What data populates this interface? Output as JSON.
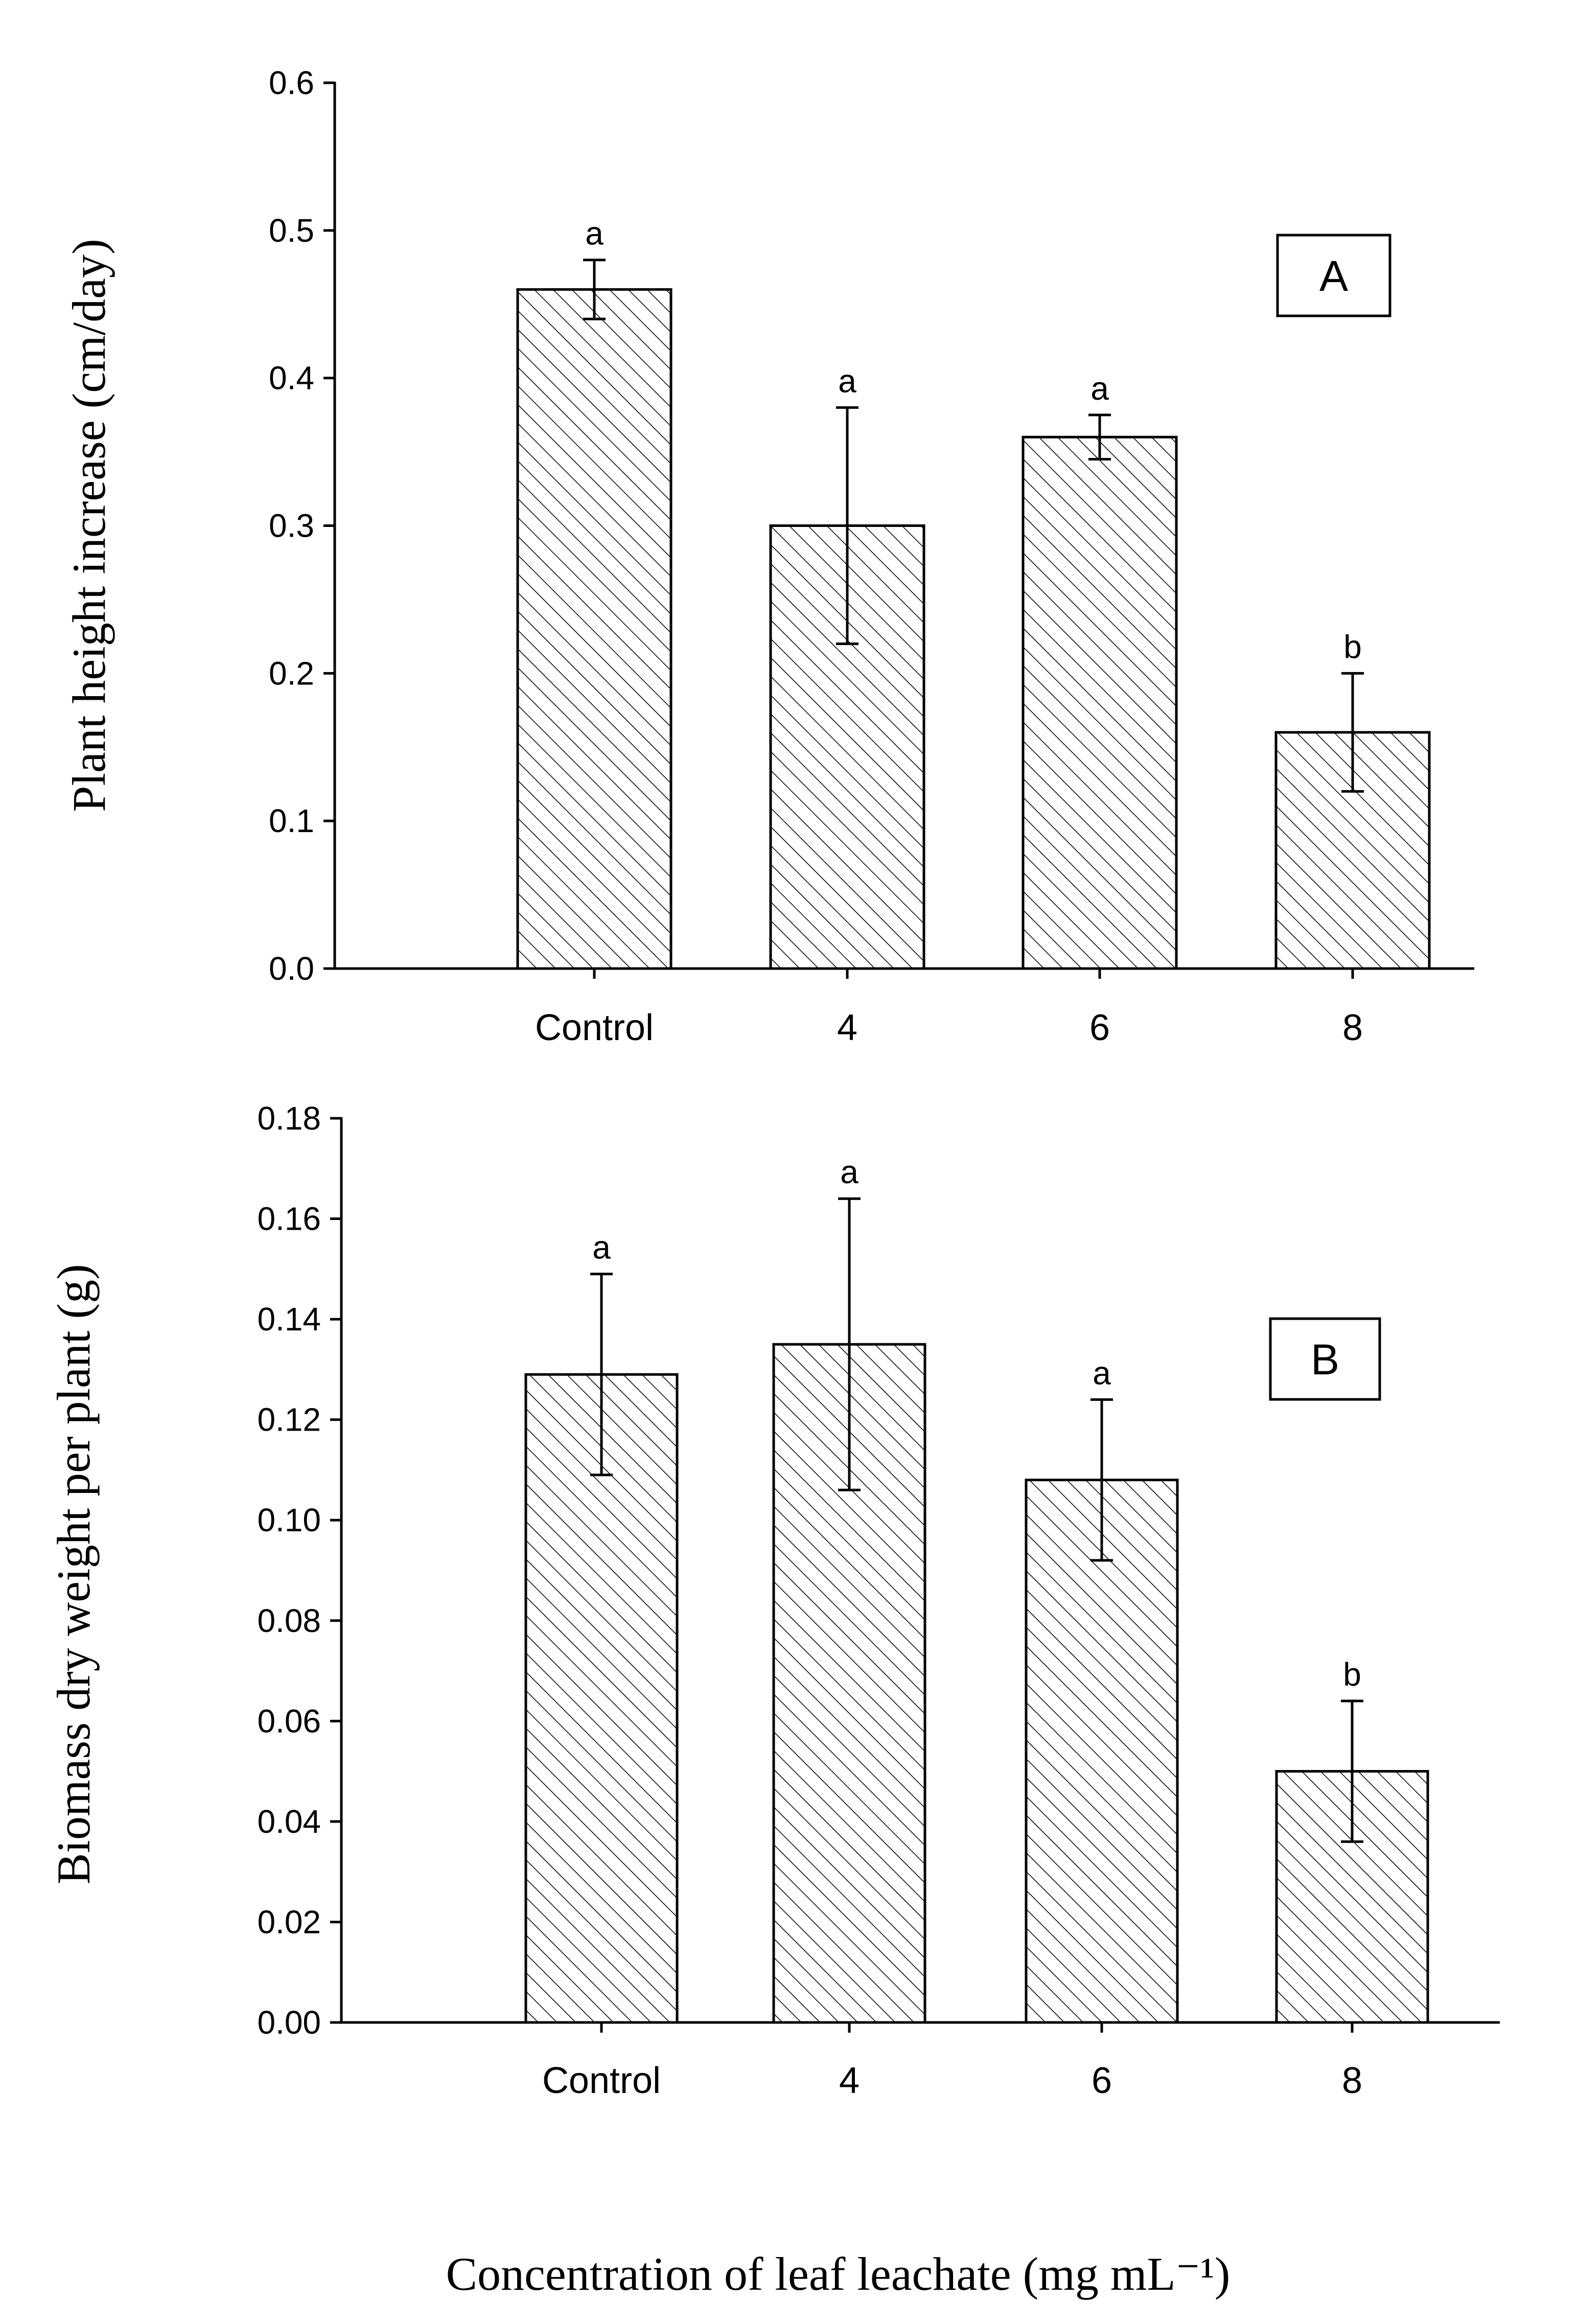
{
  "chart_data": [
    {
      "type": "bar",
      "panel_label": "A",
      "ylabel": "Plant height increase (cm/day)",
      "categories": [
        "Control",
        "4",
        "6",
        "8"
      ],
      "values": [
        0.46,
        0.3,
        0.36,
        0.16
      ],
      "errors": [
        0.02,
        0.08,
        0.015,
        0.04
      ],
      "significance": [
        "a",
        "a",
        "a",
        "b"
      ],
      "ylim": [
        0,
        0.6
      ],
      "yticks": [
        "0.0",
        "0.1",
        "0.2",
        "0.3",
        "0.4",
        "0.5",
        "0.6"
      ]
    },
    {
      "type": "bar",
      "panel_label": "B",
      "ylabel": "Biomass dry weight per plant (g)",
      "categories": [
        "Control",
        "4",
        "6",
        "8"
      ],
      "values": [
        0.129,
        0.135,
        0.108,
        0.05
      ],
      "errors": [
        0.02,
        0.029,
        0.016,
        0.014
      ],
      "significance": [
        "a",
        "a",
        "a",
        "b"
      ],
      "ylim": [
        0,
        0.18
      ],
      "yticks": [
        "0.00",
        "0.02",
        "0.04",
        "0.06",
        "0.08",
        "0.10",
        "0.12",
        "0.14",
        "0.16",
        "0.18"
      ]
    }
  ],
  "xlabel": "Concentration of leaf leachate (mg mL⁻¹)"
}
